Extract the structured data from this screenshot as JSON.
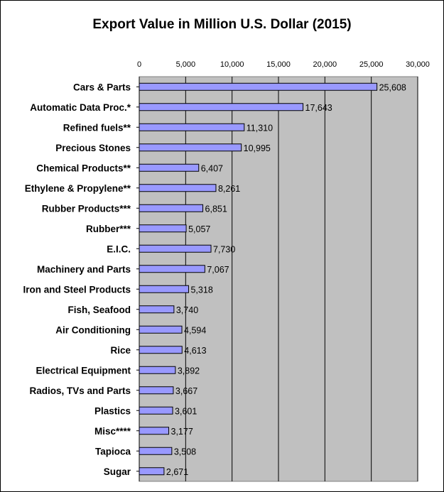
{
  "chart_data": {
    "type": "bar",
    "orientation": "horizontal",
    "title": "Export Value in Million U.S. Dollar (2015)",
    "xlim": [
      0,
      30000
    ],
    "xticks": [
      "0",
      "5,000",
      "10,000",
      "15,000",
      "20,000",
      "25,000",
      "30,000"
    ],
    "xtick_values": [
      0,
      5000,
      10000,
      15000,
      20000,
      25000,
      30000
    ],
    "grid": true,
    "categories": [
      "Cars & Parts",
      "Automatic Data Proc.*",
      "Refined fuels**",
      "Precious Stones",
      "Chemical Products**",
      "Ethylene & Propylene**",
      "Rubber Products***",
      "Rubber***",
      "E.I.C.",
      "Machinery and Parts",
      "Iron and Steel Products",
      "Fish, Seafood",
      "Air Conditioning",
      "Rice",
      "Electrical Equipment",
      "Radios, TVs and Parts",
      "Plastics",
      "Misc****",
      "Tapioca",
      "Sugar"
    ],
    "values": [
      25608,
      17643,
      11310,
      10995,
      6407,
      8261,
      6851,
      5057,
      7730,
      7067,
      5318,
      3740,
      4594,
      4613,
      3892,
      3667,
      3601,
      3177,
      3508,
      2671
    ],
    "value_labels": [
      "25,608",
      "17,643",
      "11,310",
      "10,995",
      "6,407",
      "8,261",
      "6,851",
      "5,057",
      "7,730",
      "7,067",
      "5,318",
      "3,740",
      "4,594",
      "4,613",
      "3,892",
      "3,667",
      "3,601",
      "3,177",
      "3,508",
      "2,671"
    ],
    "colors": {
      "bar": "#9999ff",
      "bar_border": "#000000",
      "plot_background": "#c0c0c0",
      "gridline": "#000000"
    }
  }
}
